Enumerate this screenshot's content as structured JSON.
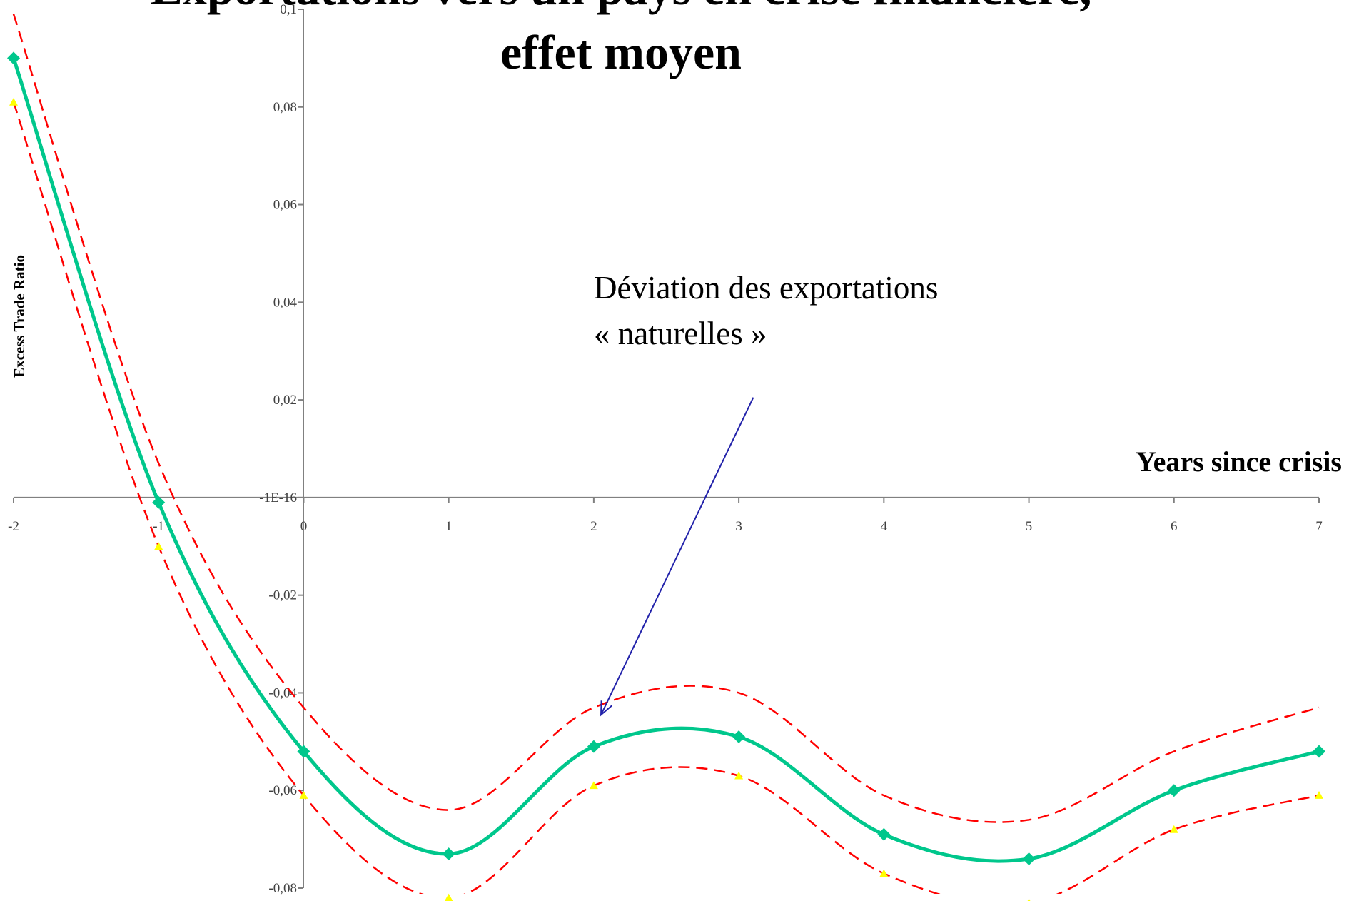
{
  "chart_data": {
    "type": "line",
    "title_lines": [
      "Exportations vers un pays en crise financière,",
      "effet moyen"
    ],
    "xlabel": "Years since crisis",
    "ylabel": "Excess Trade Ratio",
    "x": [
      -2,
      -1,
      0,
      1,
      2,
      3,
      4,
      5,
      6,
      7
    ],
    "xlim": [
      -2,
      7
    ],
    "ylim": [
      -0.08,
      0.1
    ],
    "x_ticks": [
      "-2",
      "-1",
      "0",
      "1",
      "2",
      "3",
      "4",
      "5",
      "6",
      "7"
    ],
    "y_tick_values": [
      0.1,
      0.08,
      0.06,
      0.04,
      0.02,
      0,
      -0.02,
      -0.04,
      -0.06,
      -0.08
    ],
    "y_ticks": [
      "0,1",
      "0,08",
      "0,06",
      "0,04",
      "0,02",
      "-1E-16",
      "-0,02",
      "-0,04",
      "-0,06",
      "-0,08"
    ],
    "series": [
      {
        "role": "estimate",
        "color": "#00c78c",
        "marker": "diamond",
        "values": [
          0.09,
          -0.001,
          -0.052,
          -0.073,
          -0.051,
          -0.049,
          -0.069,
          -0.074,
          -0.06,
          -0.052
        ]
      },
      {
        "role": "upper-bound",
        "color": "#ff0000",
        "style": "dashed",
        "values": [
          0.099,
          0.007,
          -0.043,
          -0.064,
          -0.043,
          -0.04,
          -0.061,
          -0.066,
          -0.052,
          -0.043
        ]
      },
      {
        "role": "lower-bound",
        "color": "#ff0000",
        "style": "dashed",
        "marker": "triangle",
        "marker_color": "#ffff00",
        "values": [
          0.081,
          -0.01,
          -0.061,
          -0.082,
          -0.059,
          -0.057,
          -0.077,
          -0.083,
          -0.068,
          -0.061
        ]
      }
    ],
    "annotation": {
      "lines": [
        "Déviation des exportations",
        "« naturelles »"
      ],
      "arrow_color": "#2222aa",
      "arrow_tail": [
        3.1,
        0.0205
      ],
      "arrow_head": [
        2.05,
        -0.0445
      ]
    },
    "grid": false,
    "legend": "none"
  }
}
